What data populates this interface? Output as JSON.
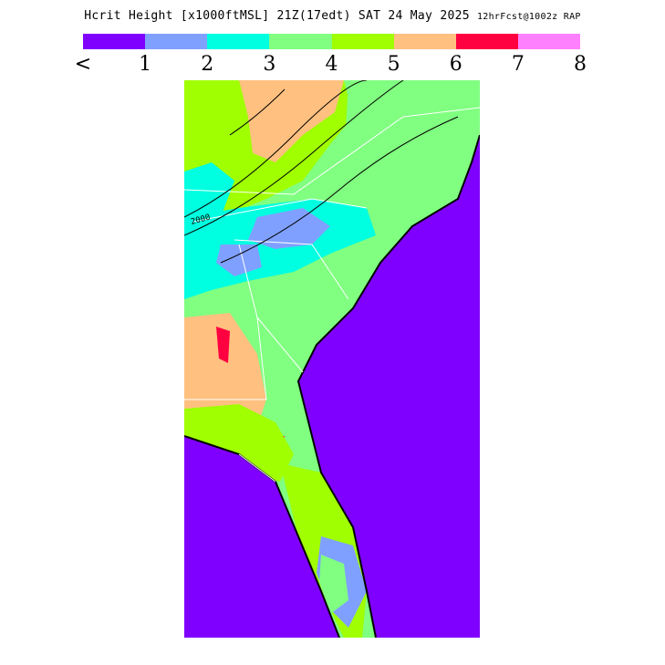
{
  "title": {
    "main": "Hcrit Height [x1000ftMSL] 21Z(17edt) SAT 24 May 2025",
    "fcst": "12hrFcst@1002z RAP"
  },
  "legend": {
    "colors": [
      "#8000ff",
      "#80a0ff",
      "#00ffe0",
      "#80ff80",
      "#a0ff00",
      "#ffc080",
      "#ff0040",
      "#ff80ff"
    ],
    "labels": [
      "<",
      "1",
      "2",
      "3",
      "4",
      "5",
      "6",
      "7",
      "8"
    ]
  },
  "map": {
    "contour_label": "2000",
    "water_color": "#8000ff",
    "land_default_color": "#80ff80",
    "outline_color": "#000000",
    "border_color": "#ffffff"
  }
}
